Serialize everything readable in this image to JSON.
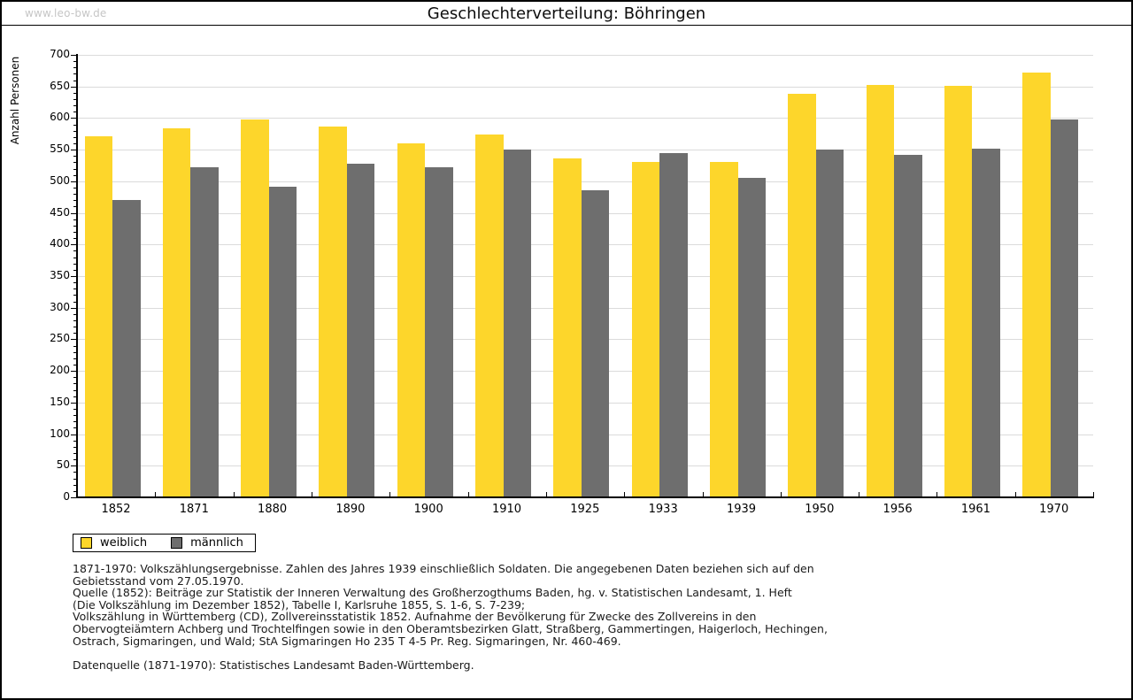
{
  "page": {
    "watermark": "www.leo-bw.de",
    "title": "Geschlechterverteilung: Böhringen"
  },
  "chart_data": {
    "type": "bar",
    "title": "Geschlechterverteilung: Böhringen",
    "xlabel": "",
    "ylabel": "Anzahl Personen",
    "ylim": [
      0,
      700
    ],
    "ytick_major": 50,
    "ytick_minor": 10,
    "grid": true,
    "legend_position": "bottom-left",
    "categories": [
      "1852",
      "1871",
      "1880",
      "1890",
      "1900",
      "1910",
      "1925",
      "1933",
      "1939",
      "1950",
      "1956",
      "1961",
      "1970"
    ],
    "series": [
      {
        "name": "weiblich",
        "color": "#fdd62b",
        "values": [
          571,
          584,
          598,
          587,
          560,
          574,
          536,
          530,
          531,
          639,
          652,
          651,
          672
        ]
      },
      {
        "name": "männlich",
        "color": "#6e6e6e",
        "values": [
          471,
          522,
          492,
          528,
          522,
          550,
          486,
          545,
          506,
          550,
          542,
          551,
          598
        ]
      }
    ]
  },
  "footnotes": {
    "lines": [
      "1871-1970: Volkszählungsergebnisse. Zahlen des Jahres 1939 einschließlich Soldaten. Die angegebenen Daten beziehen sich auf den",
      "Gebietsstand vom 27.05.1970.",
      "Quelle (1852): Beiträge zur Statistik der Inneren Verwaltung des Großherzogthums Baden, hg. v. Statistischen Landesamt, 1. Heft",
      "(Die Volkszählung im Dezember 1852), Tabelle I, Karlsruhe 1855, S. 1-6, S. 7-239;",
      "Volkszählung in Württemberg (CD), Zollvereinsstatistik 1852. Aufnahme der Bevölkerung für Zwecke des Zollvereins in den",
      "Obervogteiämtern Achberg und Trochtelfingen sowie in den Oberamtsbezirken Glatt, Straßberg, Gammertingen, Haigerloch, Hechingen,",
      "Ostrach, Sigmaringen, und Wald; StA Sigmaringen Ho 235 T 4-5 Pr. Reg. Sigmaringen, Nr. 460-469.",
      "",
      "Datenquelle (1871-1970): Statistisches Landesamt Baden-Württemberg."
    ]
  }
}
